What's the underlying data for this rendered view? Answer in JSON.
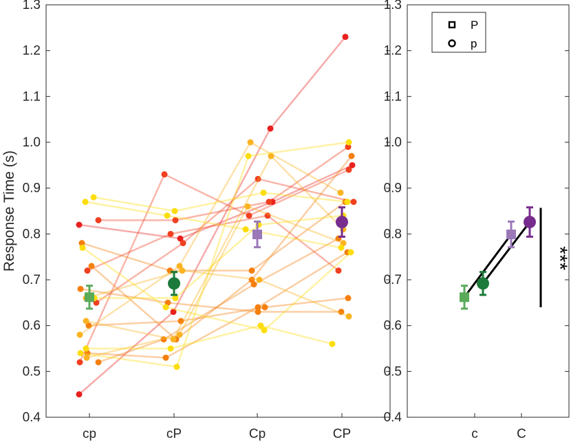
{
  "chart_data": [
    {
      "type": "scatter",
      "panel": "left",
      "ylabel": "Response Time (s)",
      "ylim": [
        0.4,
        1.3
      ],
      "yticks": [
        "0.4",
        "0.5",
        "0.6",
        "0.7",
        "0.8",
        "0.9",
        "1.0",
        "1.1",
        "1.2",
        "1.3"
      ],
      "categories": [
        "cp",
        "cP",
        "Cp",
        "CP"
      ],
      "subjects": [
        {
          "color": "#e8211e",
          "y": [
            0.45,
            0.63,
            1.03,
            1.23
          ]
        },
        {
          "color": "#f04020",
          "y": [
            0.52,
            0.93,
            0.84,
            0.94
          ]
        },
        {
          "color": "#e8211e",
          "y": [
            0.82,
            0.79,
            0.87,
            0.95
          ]
        },
        {
          "color": "#f57f0f",
          "y": [
            0.78,
            0.72,
            0.72,
            0.87
          ]
        },
        {
          "color": "#f04020",
          "y": [
            0.65,
            0.78,
            0.92,
            0.87
          ]
        },
        {
          "color": "#f04020",
          "y": [
            0.72,
            0.8,
            0.84,
            0.72
          ]
        },
        {
          "color": "#f04020",
          "y": [
            0.83,
            0.83,
            0.87,
            0.99
          ]
        },
        {
          "color": "#f57f0f",
          "y": [
            0.73,
            0.57,
            0.7,
            0.97
          ]
        },
        {
          "color": "#f57f0f",
          "y": [
            0.52,
            0.57,
            0.69,
            0.79
          ]
        },
        {
          "color": "#f57f0f",
          "y": [
            0.54,
            0.53,
            0.64,
            0.76
          ]
        },
        {
          "color": "#f57f0f",
          "y": [
            0.68,
            0.65,
            0.63,
            0.63
          ]
        },
        {
          "color": "#f57f0f",
          "y": [
            0.6,
            0.61,
            0.64,
            0.66
          ]
        },
        {
          "color": "#fbb321",
          "y": [
            0.58,
            0.73,
            1.0,
            0.89
          ]
        },
        {
          "color": "#fbb321",
          "y": [
            0.61,
            0.57,
            0.97,
            0.81
          ]
        },
        {
          "color": "#fbb321",
          "y": [
            0.53,
            0.58,
            0.86,
            0.78
          ]
        },
        {
          "color": "#fbb321",
          "y": [
            0.66,
            0.72,
            0.7,
            0.62
          ]
        },
        {
          "color": "#fddd0c",
          "y": [
            0.87,
            0.84,
            0.81,
            0.77
          ]
        },
        {
          "color": "#fddd0c",
          "y": [
            0.88,
            0.85,
            0.89,
            0.87
          ]
        },
        {
          "color": "#fddd0c",
          "y": [
            0.55,
            0.55,
            0.6,
            0.56
          ]
        },
        {
          "color": "#fddd0c",
          "y": [
            0.54,
            0.51,
            0.97,
            1.0
          ]
        },
        {
          "color": "#fddd0c",
          "y": [
            0.66,
            0.66,
            0.82,
            0.84
          ]
        },
        {
          "color": "#fddd0c",
          "y": [
            0.77,
            0.64,
            0.59,
            0.76
          ]
        }
      ],
      "means": [
        {
          "label": "cp",
          "value": 0.662,
          "err": 0.025,
          "marker": "square",
          "color": "#5aaa5a"
        },
        {
          "label": "cP",
          "value": 0.692,
          "err": 0.025,
          "marker": "circle",
          "color": "#1c7a3a"
        },
        {
          "label": "Cp",
          "value": 0.799,
          "err": 0.028,
          "marker": "square",
          "color": "#9b79b8"
        },
        {
          "label": "CP",
          "value": 0.826,
          "err": 0.032,
          "marker": "circle",
          "color": "#772c8e"
        }
      ]
    },
    {
      "type": "line",
      "panel": "right",
      "ylim": [
        0.4,
        1.3
      ],
      "yticks": [
        "0.4",
        "0.5",
        "0.6",
        "0.7",
        "0.8",
        "0.9",
        "1.0",
        "1.1",
        "1.2",
        "1.3"
      ],
      "categories": [
        "c",
        "C"
      ],
      "series": [
        {
          "name": "P",
          "marker": "square",
          "values": [
            0.662,
            0.799
          ],
          "colors": [
            "#5aaa5a",
            "#9b79b8"
          ],
          "err": [
            0.025,
            0.028
          ]
        },
        {
          "name": "p",
          "marker": "circle",
          "values": [
            0.692,
            0.826
          ],
          "colors": [
            "#1c7a3a",
            "#772c8e"
          ],
          "err": [
            0.025,
            0.032
          ]
        }
      ],
      "significance": {
        "label": "***",
        "from": 0.64,
        "to": 0.857
      }
    }
  ],
  "legend": {
    "items": [
      {
        "label": "P",
        "marker": "square"
      },
      {
        "label": "p",
        "marker": "circle"
      }
    ]
  }
}
